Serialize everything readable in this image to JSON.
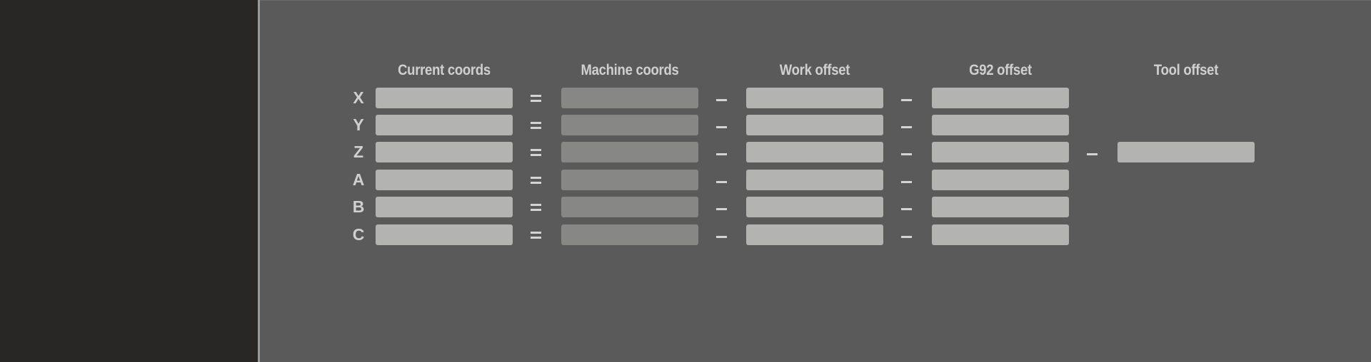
{
  "headers": {
    "current": "Current coords",
    "machine": "Machine coords",
    "work": "Work offset",
    "g92": "G92 offset",
    "tool": "Tool offset"
  },
  "rows": [
    {
      "axis": "X",
      "current": "",
      "machine": "",
      "work": "",
      "g92": "",
      "tool": null
    },
    {
      "axis": "Y",
      "current": "",
      "machine": "",
      "work": "",
      "g92": "",
      "tool": null
    },
    {
      "axis": "Z",
      "current": "",
      "machine": "",
      "work": "",
      "g92": "",
      "tool": ""
    },
    {
      "axis": "A",
      "current": "",
      "machine": "",
      "work": "",
      "g92": "",
      "tool": null
    },
    {
      "axis": "B",
      "current": "",
      "machine": "",
      "work": "",
      "g92": "",
      "tool": null
    },
    {
      "axis": "C",
      "current": "",
      "machine": "",
      "work": "",
      "g92": "",
      "tool": null
    }
  ],
  "operators": {
    "equals": "=",
    "minus": "−"
  },
  "colors": {
    "left_panel": "#282725",
    "main_panel": "#5a5a5a",
    "field_editable": "#b3b4b2",
    "field_readonly": "#878786",
    "label_text": "#d0d0d0"
  }
}
